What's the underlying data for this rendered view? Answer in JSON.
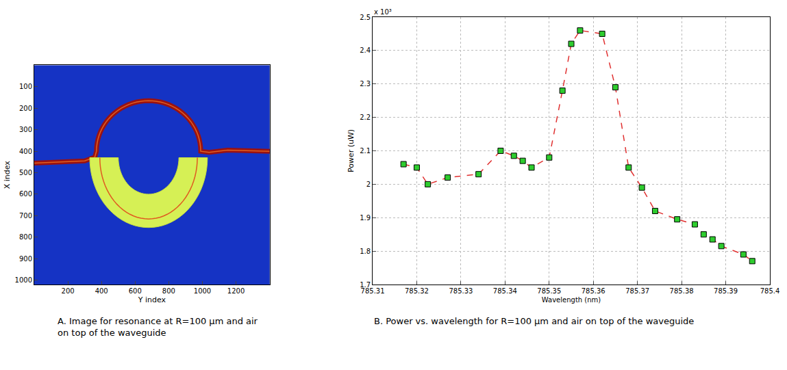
{
  "chart_data": [
    {
      "type": "image",
      "title": "A. Image for resonance at R=100 μm and air on top of the waveguide",
      "x_label": "Y index",
      "y_label": "X index",
      "xlim": [
        0,
        1400
      ],
      "ylim": [
        1020,
        0
      ],
      "xticks": [
        200,
        400,
        600,
        800,
        1000,
        1200
      ],
      "yticks": [
        100,
        200,
        300,
        400,
        500,
        600,
        700,
        800,
        900,
        1000
      ],
      "grid": false
    },
    {
      "type": "line",
      "title": "B. Power vs. wavelength for R=100 μm and air on top of the waveguide",
      "x_label": "Wavelength (nm)",
      "y_label": "Power (uW)",
      "annotations": [
        "x 10³"
      ],
      "xlim": [
        785.31,
        785.4
      ],
      "ylim": [
        1.7,
        2.5
      ],
      "xticks": [
        785.31,
        785.32,
        785.33,
        785.34,
        785.35,
        785.36,
        785.37,
        785.38,
        785.39,
        785.4
      ],
      "yticks": [
        1.7,
        1.8,
        1.9,
        2,
        2.1,
        2.2,
        2.3,
        2.4,
        2.5
      ],
      "grid": true,
      "x": [
        785.317,
        785.32,
        785.3225,
        785.327,
        785.334,
        785.339,
        785.342,
        785.344,
        785.346,
        785.35,
        785.353,
        785.355,
        785.357,
        785.362,
        785.365,
        785.368,
        785.371,
        785.374,
        785.379,
        785.383,
        785.385,
        785.387,
        785.389,
        785.394,
        785.396
      ],
      "series": [
        {
          "values": [
            2.06,
            2.05,
            2.0,
            2.02,
            2.03,
            2.1,
            2.085,
            2.07,
            2.05,
            2.08,
            2.28,
            2.42,
            2.46,
            2.45,
            2.29,
            2.05,
            1.99,
            1.92,
            1.895,
            1.88,
            1.85,
            1.835,
            1.815,
            1.79,
            1.77
          ],
          "color": "#e03030",
          "marker": "square",
          "line_style": "dash"
        }
      ]
    }
  ]
}
